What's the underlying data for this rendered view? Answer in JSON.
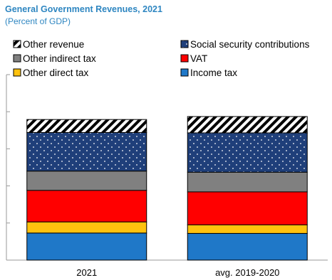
{
  "title": "General Government Revenues, 2021",
  "subtitle": "(Percent of GDP)",
  "chart_data": {
    "type": "bar",
    "stacked": true,
    "categories": [
      "2021",
      "avg. 2019-2020"
    ],
    "series": [
      {
        "name": "Income tax",
        "values": [
          7.3,
          7.2
        ],
        "color": "#1f78c8",
        "pattern": "solid"
      },
      {
        "name": "Other direct tax",
        "values": [
          3.0,
          2.3
        ],
        "color": "#ffc20e",
        "pattern": "solid"
      },
      {
        "name": "VAT",
        "values": [
          8.5,
          8.9
        ],
        "color": "#ff0000",
        "pattern": "solid"
      },
      {
        "name": "Other indirect tax",
        "values": [
          5.2,
          5.3
        ],
        "color": "#808080",
        "pattern": "solid"
      },
      {
        "name": "Social security contributions",
        "values": [
          10.4,
          10.6
        ],
        "color": "#1f3f7a",
        "pattern": "dots"
      },
      {
        "name": "Other revenue",
        "values": [
          3.5,
          4.4
        ],
        "color": "#ffffff",
        "pattern": "hatch"
      }
    ],
    "legend_order": [
      "Other revenue",
      "Social security contributions",
      "Other indirect tax",
      "VAT",
      "Other direct tax",
      "Income tax"
    ],
    "ylim": [
      0,
      50
    ],
    "y_ticks": [
      0,
      10,
      20,
      30,
      40,
      50
    ],
    "y_tick_labels_shown": false,
    "grid": false,
    "legend_position": "top"
  }
}
